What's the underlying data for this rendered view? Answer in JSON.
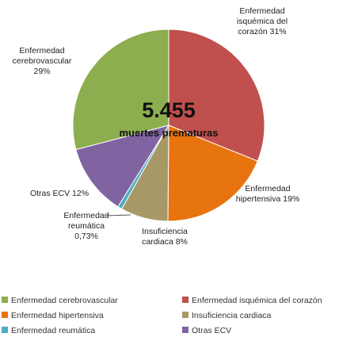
{
  "chart_data": {
    "type": "pie",
    "center_text": [
      "5.455",
      "muertes prematuras"
    ],
    "series": [
      {
        "name": "Enfermedad isquémica del corazón",
        "color": "#c0504d",
        "values": [
          31
        ],
        "value_labels": [
          "31%"
        ]
      },
      {
        "name": "Enfermedad hipertensiva",
        "color": "#e8740f",
        "values": [
          19
        ],
        "value_labels": [
          "19%"
        ]
      },
      {
        "name": "Insuficiencia cardiaca",
        "color": "#a89868",
        "values": [
          8
        ],
        "value_labels": [
          "8%"
        ]
      },
      {
        "name": "Enfermedad reumática",
        "color": "#4bacc6",
        "values": [
          0.73
        ],
        "value_labels": [
          "0,73%"
        ]
      },
      {
        "name": "Otras ECV",
        "color": "#8064a2",
        "values": [
          12
        ],
        "value_labels": [
          "12%"
        ]
      },
      {
        "name": "Enfermedad cerebrovascular",
        "color": "#8cae4e",
        "values": [
          29
        ],
        "value_labels": [
          "29%"
        ]
      }
    ]
  }
}
